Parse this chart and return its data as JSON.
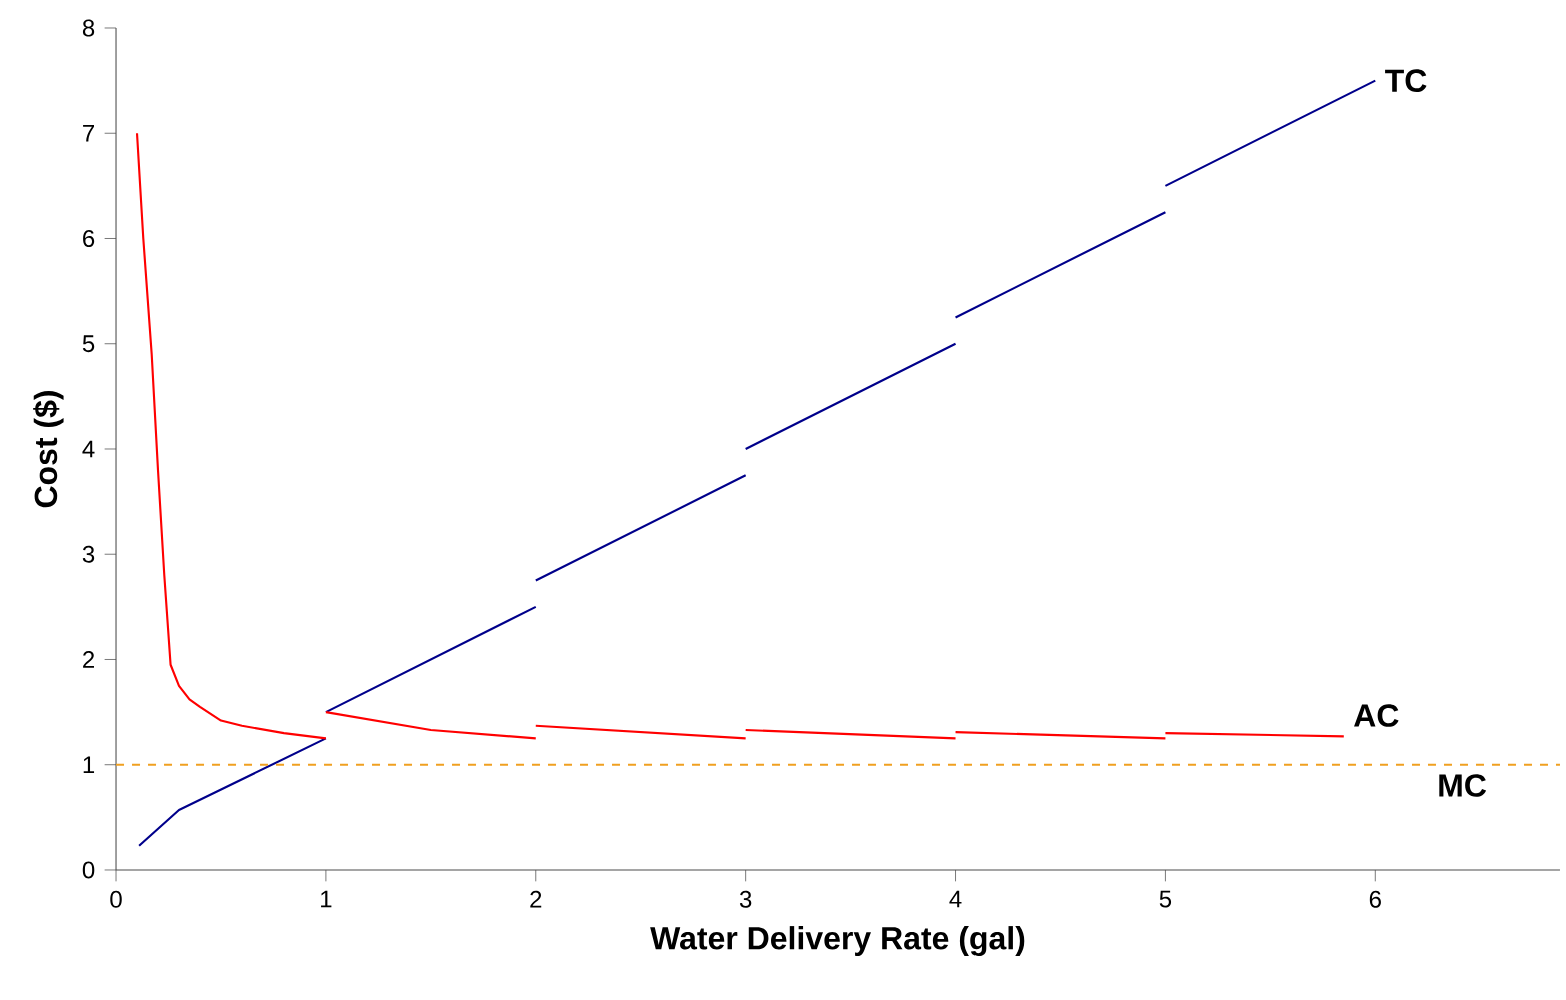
{
  "chart_data": {
    "type": "line",
    "xlabel": "Water Delivery Rate (gal)",
    "ylabel": "Cost ($)",
    "xlim": [
      0,
      6.88
    ],
    "ylim": [
      0,
      8
    ],
    "xticks": [
      0,
      1,
      2,
      3,
      4,
      5,
      6
    ],
    "yticks": [
      0,
      1,
      2,
      3,
      4,
      5,
      6,
      7,
      8
    ],
    "grid": false,
    "legend": false,
    "series": [
      {
        "name": "TC",
        "color": "#00008b",
        "x": [
          0.11,
          0.3,
          1,
          null,
          1,
          2,
          null,
          2,
          3,
          null,
          3,
          4,
          null,
          4,
          5,
          null,
          5,
          6
        ],
        "values": [
          0.23,
          0.57,
          1.25,
          null,
          1.5,
          2.5,
          null,
          2.75,
          3.75,
          null,
          4,
          5,
          null,
          5.25,
          6.25,
          null,
          6.5,
          7.5
        ]
      },
      {
        "name": "AC",
        "color": "#ff0000",
        "x": [
          0.1,
          0.13,
          0.17,
          0.2,
          0.23,
          0.26,
          0.3,
          0.35,
          0.4,
          0.5,
          0.6,
          0.8,
          1,
          null,
          1,
          1.5,
          2,
          null,
          2,
          3,
          null,
          3,
          4,
          null,
          4,
          5,
          null,
          5,
          5.85
        ],
        "values": [
          7,
          6,
          4.9,
          3.8,
          2.8,
          1.95,
          1.75,
          1.62,
          1.55,
          1.42,
          1.37,
          1.3,
          1.25,
          null,
          1.5,
          1.33,
          1.25,
          null,
          1.37,
          1.25,
          null,
          1.33,
          1.25,
          null,
          1.31,
          1.25,
          null,
          1.3,
          1.27
        ]
      },
      {
        "name": "MC",
        "color": "#f0a020",
        "line_style": "dashed",
        "x": [
          0,
          6.88
        ],
        "values": [
          1,
          1
        ]
      }
    ]
  }
}
